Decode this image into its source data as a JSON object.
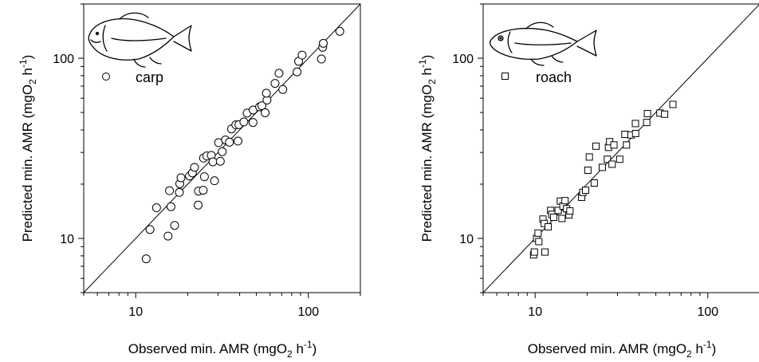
{
  "chart_data": [
    {
      "type": "scatter",
      "id": "carp",
      "xlabel": "Observed min. AMR (mgO",
      "xlabel_sub": "2",
      "xlabel_unit": " h",
      "xlabel_sup": "-1",
      "xlabel_close": ")",
      "ylabel": "Predicted min. AMR (mgO",
      "ylabel_sub": "2",
      "ylabel_unit": " h",
      "ylabel_sup": "-1",
      "ylabel_close": ")",
      "x_scale": "log",
      "y_scale": "log",
      "xlim": [
        5,
        200
      ],
      "ylim": [
        5,
        200
      ],
      "x_ticks": [
        10,
        100
      ],
      "y_ticks": [
        10,
        100
      ],
      "x_tick_labels": [
        "10",
        "100"
      ],
      "y_tick_labels": [
        "10",
        "100"
      ],
      "reference_line": "1:1",
      "legend": {
        "marker": "circle",
        "label": "carp",
        "placement": "top-left"
      },
      "icon": "carp-fish-icon",
      "series": [
        {
          "marker": "circle",
          "points": [
            [
              11.5,
              7.7
            ],
            [
              12.1,
              11.2
            ],
            [
              13.2,
              14.8
            ],
            [
              15.4,
              10.3
            ],
            [
              15.7,
              18.4
            ],
            [
              16.0,
              15.0
            ],
            [
              16.8,
              11.8
            ],
            [
              17.9,
              18.0
            ],
            [
              18.0,
              20.1
            ],
            [
              18.3,
              21.7
            ],
            [
              20.5,
              22.2
            ],
            [
              21.3,
              23.1
            ],
            [
              21.9,
              24.8
            ],
            [
              23.0,
              15.3
            ],
            [
              23.1,
              18.3
            ],
            [
              24.6,
              18.5
            ],
            [
              24.7,
              27.9
            ],
            [
              25.0,
              22.0
            ],
            [
              25.8,
              28.7
            ],
            [
              27.4,
              28.9
            ],
            [
              28.0,
              26.6
            ],
            [
              28.6,
              20.9
            ],
            [
              30.2,
              34.0
            ],
            [
              30.9,
              26.8
            ],
            [
              31.7,
              30.3
            ],
            [
              33.1,
              35.2
            ],
            [
              34.9,
              34.2
            ],
            [
              35.9,
              40.5
            ],
            [
              38.0,
              42.7
            ],
            [
              39.1,
              34.7
            ],
            [
              39.6,
              42.8
            ],
            [
              42.3,
              44.3
            ],
            [
              44.2,
              49.6
            ],
            [
              47.8,
              44.0
            ],
            [
              47.9,
              51.6
            ],
            [
              52.2,
              53.7
            ],
            [
              53.8,
              54.5
            ],
            [
              56.2,
              49.8
            ],
            [
              57.6,
              58.6
            ],
            [
              57.1,
              64.0
            ],
            [
              64.1,
              72.5
            ],
            [
              67.6,
              82.5
            ],
            [
              71.1,
              67.1
            ],
            [
              86.0,
              84.0
            ],
            [
              87.8,
              96.1
            ],
            [
              92.0,
              104.0
            ],
            [
              119.0,
              99.0
            ],
            [
              121.0,
              115.0
            ],
            [
              122.0,
              121.0
            ],
            [
              152.0,
              141.0
            ]
          ]
        }
      ]
    },
    {
      "type": "scatter",
      "id": "roach",
      "xlabel": "Observed min. AMR (mgO",
      "xlabel_sub": "2",
      "xlabel_unit": " h",
      "xlabel_sup": "-1",
      "xlabel_close": ")",
      "ylabel": "Predicted min. AMR (mgO",
      "ylabel_sub": "2",
      "ylabel_unit": " h",
      "ylabel_sup": "-1",
      "ylabel_close": ")",
      "x_scale": "log",
      "y_scale": "log",
      "xlim": [
        5,
        200
      ],
      "ylim": [
        5,
        200
      ],
      "x_ticks": [
        10,
        100
      ],
      "y_ticks": [
        10,
        100
      ],
      "x_tick_labels": [
        "10",
        "100"
      ],
      "y_tick_labels": [
        "10",
        "100"
      ],
      "reference_line": "1:1",
      "legend": {
        "marker": "square",
        "label": "roach",
        "placement": "top-left"
      },
      "icon": "roach-fish-icon",
      "series": [
        {
          "marker": "square",
          "points": [
            [
              9.8,
              8.1
            ],
            [
              9.9,
              8.4
            ],
            [
              10.2,
              10.0
            ],
            [
              10.4,
              10.7
            ],
            [
              10.5,
              9.6
            ],
            [
              11.1,
              12.8
            ],
            [
              11.3,
              12.1
            ],
            [
              11.4,
              8.4
            ],
            [
              11.9,
              11.6
            ],
            [
              12.3,
              14.3
            ],
            [
              12.5,
              13.6
            ],
            [
              12.8,
              13.1
            ],
            [
              13.6,
              14.3
            ],
            [
              14.0,
              16.1
            ],
            [
              14.3,
              12.9
            ],
            [
              14.5,
              15.1
            ],
            [
              14.9,
              16.2
            ],
            [
              15.2,
              14.6
            ],
            [
              15.7,
              13.5
            ],
            [
              15.9,
              14.2
            ],
            [
              18.6,
              16.9
            ],
            [
              18.9,
              18.0
            ],
            [
              19.6,
              18.5
            ],
            [
              20.2,
              23.9
            ],
            [
              20.6,
              28.3
            ],
            [
              22.0,
              20.3
            ],
            [
              22.5,
              32.5
            ],
            [
              24.5,
              24.8
            ],
            [
              26.2,
              27.5
            ],
            [
              26.6,
              32.0
            ],
            [
              27.0,
              34.4
            ],
            [
              27.9,
              25.8
            ],
            [
              28.6,
              33.0
            ],
            [
              30.9,
              27.5
            ],
            [
              33.1,
              37.8
            ],
            [
              33.8,
              33.0
            ],
            [
              35.9,
              37.5
            ],
            [
              38.1,
              43.4
            ],
            [
              38.2,
              38.2
            ],
            [
              44.3,
              44.0
            ],
            [
              44.7,
              49.3
            ],
            [
              52.8,
              49.6
            ],
            [
              56.2,
              48.9
            ],
            [
              62.8,
              55.4
            ]
          ]
        }
      ]
    }
  ]
}
